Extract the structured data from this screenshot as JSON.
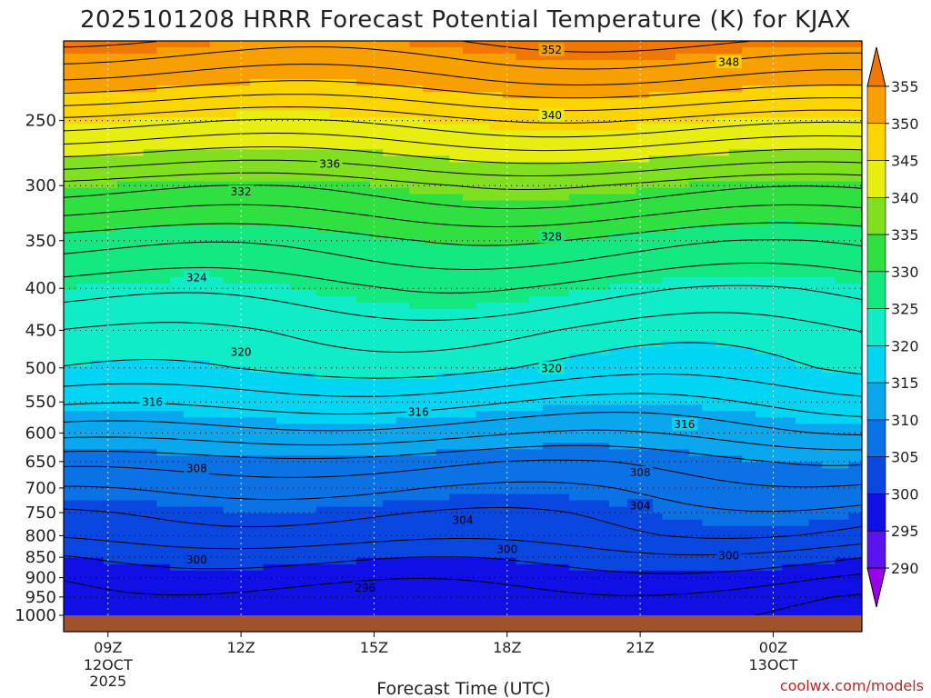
{
  "chart_data": {
    "type": "heatmap",
    "title": "2025101208 HRRR Forecast Potential Temperature (K) for KJAX",
    "xlabel": "Forecast Time (UTC)",
    "ylabel": "",
    "y_ticks": [
      250,
      300,
      350,
      400,
      450,
      500,
      550,
      600,
      650,
      700,
      750,
      800,
      850,
      900,
      950,
      1000
    ],
    "y_scale": "log",
    "ylim": [
      1000,
      200
    ],
    "x_ticks": [
      {
        "hour": 0,
        "label": "09Z",
        "sub1": "12OCT",
        "sub2": "2025"
      },
      {
        "hour": 3,
        "label": "12Z",
        "sub1": "",
        "sub2": ""
      },
      {
        "hour": 6,
        "label": "15Z",
        "sub1": "",
        "sub2": ""
      },
      {
        "hour": 9,
        "label": "18Z",
        "sub1": "",
        "sub2": ""
      },
      {
        "hour": 12,
        "label": "21Z",
        "sub1": "",
        "sub2": ""
      },
      {
        "hour": 15,
        "label": "00Z",
        "sub1": "13OCT",
        "sub2": ""
      }
    ],
    "xlim": [
      -1,
      17
    ],
    "colorbar": {
      "levels": [
        290,
        295,
        300,
        305,
        310,
        315,
        320,
        325,
        330,
        335,
        340,
        345,
        350,
        355
      ],
      "colors": [
        "#9b00ea",
        "#5a12ee",
        "#1010e6",
        "#0a46e0",
        "#0a72e4",
        "#0aa6ee",
        "#00d6f4",
        "#10ecc8",
        "#14e880",
        "#30e040",
        "#80e020",
        "#e8ee10",
        "#fcd400",
        "#f8a000",
        "#f07800"
      ]
    },
    "contours": [
      {
        "value": 296,
        "labels": [
          {
            "hour": 5.8,
            "p": 925
          }
        ]
      },
      {
        "value": 300,
        "labels": [
          {
            "hour": 2.0,
            "p": 855
          },
          {
            "hour": 9.0,
            "p": 830
          },
          {
            "hour": 14.0,
            "p": 845
          }
        ]
      },
      {
        "value": 304,
        "labels": [
          {
            "hour": 8.0,
            "p": 765
          },
          {
            "hour": 12.0,
            "p": 735
          }
        ]
      },
      {
        "value": 308,
        "labels": [
          {
            "hour": 2.0,
            "p": 662
          },
          {
            "hour": 12.0,
            "p": 670
          }
        ]
      },
      {
        "value": 316,
        "labels": [
          {
            "hour": 1.0,
            "p": 550
          },
          {
            "hour": 7.0,
            "p": 565
          },
          {
            "hour": 13.0,
            "p": 585
          }
        ]
      },
      {
        "value": 320,
        "labels": [
          {
            "hour": 3.0,
            "p": 478
          },
          {
            "hour": 10.0,
            "p": 500
          }
        ]
      },
      {
        "value": 324,
        "labels": [
          {
            "hour": 2.0,
            "p": 388
          }
        ]
      },
      {
        "value": 328,
        "labels": [
          {
            "hour": 10.0,
            "p": 346
          }
        ]
      },
      {
        "value": 332,
        "labels": [
          {
            "hour": 3.0,
            "p": 305
          }
        ]
      },
      {
        "value": 336,
        "labels": [
          {
            "hour": 5.0,
            "p": 282
          }
        ]
      },
      {
        "value": 340,
        "labels": [
          {
            "hour": 10.0,
            "p": 246
          }
        ]
      },
      {
        "value": 348,
        "labels": [
          {
            "hour": 14.0,
            "p": 212
          }
        ]
      },
      {
        "value": 352,
        "labels": [
          {
            "hour": 10.0,
            "p": 205
          }
        ]
      }
    ],
    "surface_color": "#a0522d"
  },
  "credit": "coolwx.com/models"
}
